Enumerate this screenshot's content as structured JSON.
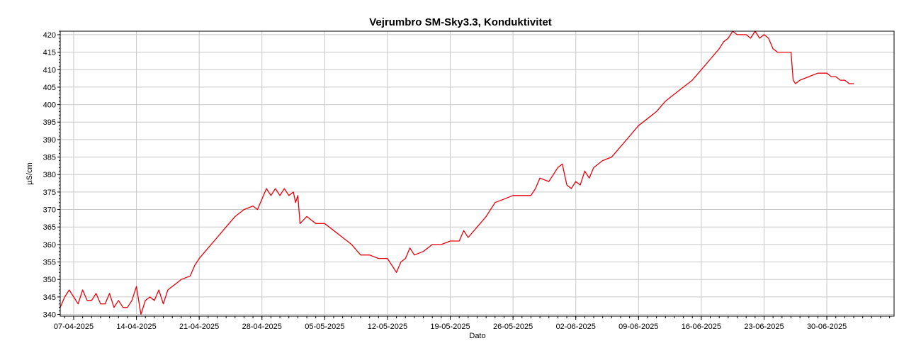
{
  "chart_data": {
    "type": "line",
    "title": "Vejrumbro SM-Sky3.3, Konduktivitet",
    "xlabel": "Dato",
    "ylabel": "µS/cm",
    "ylim": [
      339.5,
      421
    ],
    "y_ticks": [
      340,
      345,
      350,
      355,
      360,
      365,
      370,
      375,
      380,
      385,
      390,
      395,
      400,
      405,
      410,
      415,
      420
    ],
    "x_range": [
      "2025-04-05T12:00",
      "2025-07-07T12:00"
    ],
    "x_ticks": [
      {
        "date": "2025-04-07",
        "label": "07-04-2025"
      },
      {
        "date": "2025-04-14",
        "label": "14-04-2025"
      },
      {
        "date": "2025-04-21",
        "label": "21-04-2025"
      },
      {
        "date": "2025-04-28",
        "label": "28-04-2025"
      },
      {
        "date": "2025-05-05",
        "label": "05-05-2025"
      },
      {
        "date": "2025-05-12",
        "label": "12-05-2025"
      },
      {
        "date": "2025-05-19",
        "label": "19-05-2025"
      },
      {
        "date": "2025-05-26",
        "label": "26-05-2025"
      },
      {
        "date": "2025-06-02",
        "label": "02-06-2025"
      },
      {
        "date": "2025-06-09",
        "label": "09-06-2025"
      },
      {
        "date": "2025-06-16",
        "label": "16-06-2025"
      },
      {
        "date": "2025-06-23",
        "label": "23-06-2025"
      },
      {
        "date": "2025-06-30",
        "label": "30-06-2025"
      }
    ],
    "grid": true,
    "series": [
      {
        "color": "#e8000b",
        "points": [
          [
            "2025-04-05T12:00",
            342
          ],
          [
            "2025-04-06T00:00",
            345
          ],
          [
            "2025-04-06T12:00",
            347
          ],
          [
            "2025-04-07T00:00",
            345
          ],
          [
            "2025-04-07T12:00",
            343
          ],
          [
            "2025-04-08T00:00",
            347
          ],
          [
            "2025-04-08T12:00",
            344
          ],
          [
            "2025-04-09T00:00",
            344
          ],
          [
            "2025-04-09T12:00",
            346
          ],
          [
            "2025-04-10T00:00",
            343
          ],
          [
            "2025-04-10T12:00",
            343
          ],
          [
            "2025-04-11T00:00",
            346
          ],
          [
            "2025-04-11T12:00",
            342
          ],
          [
            "2025-04-12T00:00",
            344
          ],
          [
            "2025-04-12T12:00",
            342
          ],
          [
            "2025-04-13T00:00",
            342
          ],
          [
            "2025-04-13T12:00",
            344
          ],
          [
            "2025-04-14T00:00",
            348
          ],
          [
            "2025-04-14T12:00",
            340
          ],
          [
            "2025-04-15T00:00",
            344
          ],
          [
            "2025-04-15T12:00",
            345
          ],
          [
            "2025-04-16T00:00",
            344
          ],
          [
            "2025-04-16T12:00",
            347
          ],
          [
            "2025-04-17T00:00",
            343
          ],
          [
            "2025-04-17T12:00",
            347
          ],
          [
            "2025-04-18T00:00",
            348
          ],
          [
            "2025-04-19T00:00",
            350
          ],
          [
            "2025-04-20T00:00",
            351
          ],
          [
            "2025-04-20T12:00",
            354
          ],
          [
            "2025-04-21T00:00",
            356
          ],
          [
            "2025-04-22T00:00",
            359
          ],
          [
            "2025-04-23T00:00",
            362
          ],
          [
            "2025-04-24T00:00",
            365
          ],
          [
            "2025-04-25T00:00",
            368
          ],
          [
            "2025-04-26T00:00",
            370
          ],
          [
            "2025-04-27T00:00",
            371
          ],
          [
            "2025-04-27T12:00",
            370
          ],
          [
            "2025-04-28T00:00",
            373
          ],
          [
            "2025-04-28T12:00",
            376
          ],
          [
            "2025-04-29T00:00",
            374
          ],
          [
            "2025-04-29T12:00",
            376
          ],
          [
            "2025-04-30T00:00",
            374
          ],
          [
            "2025-04-30T12:00",
            376
          ],
          [
            "2025-05-01T00:00",
            374
          ],
          [
            "2025-05-01T12:00",
            375
          ],
          [
            "2025-05-01T18:00",
            372
          ],
          [
            "2025-05-02T00:00",
            374
          ],
          [
            "2025-05-02T06:00",
            366
          ],
          [
            "2025-05-03T00:00",
            368
          ],
          [
            "2025-05-04T00:00",
            366
          ],
          [
            "2025-05-05T00:00",
            366
          ],
          [
            "2025-05-06T00:00",
            364
          ],
          [
            "2025-05-07T00:00",
            362
          ],
          [
            "2025-05-08T00:00",
            360
          ],
          [
            "2025-05-09T00:00",
            357
          ],
          [
            "2025-05-10T00:00",
            357
          ],
          [
            "2025-05-11T00:00",
            356
          ],
          [
            "2025-05-12T00:00",
            356
          ],
          [
            "2025-05-12T12:00",
            354
          ],
          [
            "2025-05-13T00:00",
            352
          ],
          [
            "2025-05-13T12:00",
            355
          ],
          [
            "2025-05-14T00:00",
            356
          ],
          [
            "2025-05-14T12:00",
            359
          ],
          [
            "2025-05-15T00:00",
            357
          ],
          [
            "2025-05-16T00:00",
            358
          ],
          [
            "2025-05-17T00:00",
            360
          ],
          [
            "2025-05-18T00:00",
            360
          ],
          [
            "2025-05-19T00:00",
            361
          ],
          [
            "2025-05-20T00:00",
            361
          ],
          [
            "2025-05-20T12:00",
            364
          ],
          [
            "2025-05-21T00:00",
            362
          ],
          [
            "2025-05-22T00:00",
            365
          ],
          [
            "2025-05-23T00:00",
            368
          ],
          [
            "2025-05-24T00:00",
            372
          ],
          [
            "2025-05-25T00:00",
            373
          ],
          [
            "2025-05-26T00:00",
            374
          ],
          [
            "2025-05-27T00:00",
            374
          ],
          [
            "2025-05-28T00:00",
            374
          ],
          [
            "2025-05-28T12:00",
            376
          ],
          [
            "2025-05-29T00:00",
            379
          ],
          [
            "2025-05-30T00:00",
            378
          ],
          [
            "2025-05-30T12:00",
            380
          ],
          [
            "2025-05-31T00:00",
            382
          ],
          [
            "2025-05-31T12:00",
            383
          ],
          [
            "2025-06-01T00:00",
            377
          ],
          [
            "2025-06-01T12:00",
            376
          ],
          [
            "2025-06-02T00:00",
            378
          ],
          [
            "2025-06-02T12:00",
            377
          ],
          [
            "2025-06-03T00:00",
            381
          ],
          [
            "2025-06-03T12:00",
            379
          ],
          [
            "2025-06-04T00:00",
            382
          ],
          [
            "2025-06-05T00:00",
            384
          ],
          [
            "2025-06-06T00:00",
            385
          ],
          [
            "2025-06-07T00:00",
            388
          ],
          [
            "2025-06-08T00:00",
            391
          ],
          [
            "2025-06-09T00:00",
            394
          ],
          [
            "2025-06-10T00:00",
            396
          ],
          [
            "2025-06-11T00:00",
            398
          ],
          [
            "2025-06-12T00:00",
            401
          ],
          [
            "2025-06-13T00:00",
            403
          ],
          [
            "2025-06-14T00:00",
            405
          ],
          [
            "2025-06-15T00:00",
            407
          ],
          [
            "2025-06-16T00:00",
            410
          ],
          [
            "2025-06-17T00:00",
            413
          ],
          [
            "2025-06-18T00:00",
            416
          ],
          [
            "2025-06-18T12:00",
            418
          ],
          [
            "2025-06-19T00:00",
            419
          ],
          [
            "2025-06-19T12:00",
            421
          ],
          [
            "2025-06-20T00:00",
            420
          ],
          [
            "2025-06-21T00:00",
            420
          ],
          [
            "2025-06-21T12:00",
            419
          ],
          [
            "2025-06-22T00:00",
            421
          ],
          [
            "2025-06-22T12:00",
            419
          ],
          [
            "2025-06-23T00:00",
            420
          ],
          [
            "2025-06-23T12:00",
            419
          ],
          [
            "2025-06-24T00:00",
            416
          ],
          [
            "2025-06-24T12:00",
            415
          ],
          [
            "2025-06-25T00:00",
            415
          ],
          [
            "2025-06-25T12:00",
            415
          ],
          [
            "2025-06-26T00:00",
            415
          ],
          [
            "2025-06-26T06:00",
            407
          ],
          [
            "2025-06-26T12:00",
            406
          ],
          [
            "2025-06-27T00:00",
            407
          ],
          [
            "2025-06-28T00:00",
            408
          ],
          [
            "2025-06-29T00:00",
            409
          ],
          [
            "2025-06-30T00:00",
            409
          ],
          [
            "2025-06-30T12:00",
            408
          ],
          [
            "2025-07-01T00:00",
            408
          ],
          [
            "2025-07-01T12:00",
            407
          ],
          [
            "2025-07-02T00:00",
            407
          ],
          [
            "2025-07-02T12:00",
            406
          ],
          [
            "2025-07-03T00:00",
            406
          ]
        ]
      }
    ]
  }
}
